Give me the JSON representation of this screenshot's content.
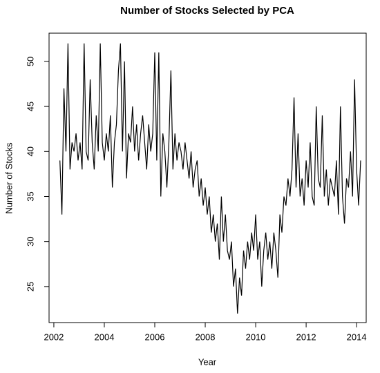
{
  "chart_data": {
    "type": "line",
    "title": "Number of Stocks Selected by PCA",
    "x_label": "Year",
    "y_label": "Number of Stocks",
    "color": "#000000",
    "xlim": [
      2001.81,
      2014.38
    ],
    "ylim": [
      21.0,
      53.14
    ],
    "xticks": [
      2002,
      2004,
      2006,
      2008,
      2010,
      2012,
      2014
    ],
    "yticks": [
      25,
      30,
      35,
      40,
      45,
      50
    ],
    "x": [
      2002.24,
      2002.32,
      2002.4,
      2002.48,
      2002.56,
      2002.64,
      2002.72,
      2002.8,
      2002.88,
      2002.96,
      2003.04,
      2003.12,
      2003.2,
      2003.28,
      2003.36,
      2003.44,
      2003.52,
      2003.6,
      2003.68,
      2003.76,
      2003.84,
      2003.92,
      2004.0,
      2004.08,
      2004.16,
      2004.24,
      2004.32,
      2004.4,
      2004.48,
      2004.56,
      2004.64,
      2004.72,
      2004.8,
      2004.88,
      2004.96,
      2005.04,
      2005.12,
      2005.2,
      2005.28,
      2005.36,
      2005.44,
      2005.52,
      2005.6,
      2005.68,
      2005.76,
      2005.84,
      2005.92,
      2006.0,
      2006.08,
      2006.16,
      2006.24,
      2006.32,
      2006.4,
      2006.48,
      2006.56,
      2006.64,
      2006.72,
      2006.8,
      2006.88,
      2006.96,
      2007.04,
      2007.12,
      2007.2,
      2007.28,
      2007.36,
      2007.44,
      2007.52,
      2007.6,
      2007.68,
      2007.76,
      2007.84,
      2007.92,
      2008.0,
      2008.08,
      2008.16,
      2008.24,
      2008.32,
      2008.4,
      2008.48,
      2008.56,
      2008.64,
      2008.72,
      2008.8,
      2008.88,
      2008.96,
      2009.04,
      2009.12,
      2009.2,
      2009.28,
      2009.36,
      2009.44,
      2009.52,
      2009.6,
      2009.68,
      2009.76,
      2009.84,
      2009.92,
      2010.0,
      2010.08,
      2010.16,
      2010.24,
      2010.32,
      2010.4,
      2010.48,
      2010.56,
      2010.64,
      2010.72,
      2010.8,
      2010.88,
      2010.96,
      2011.04,
      2011.12,
      2011.2,
      2011.28,
      2011.36,
      2011.44,
      2011.52,
      2011.6,
      2011.68,
      2011.76,
      2011.84,
      2011.92,
      2012.0,
      2012.08,
      2012.16,
      2012.24,
      2012.32,
      2012.4,
      2012.48,
      2012.56,
      2012.64,
      2012.72,
      2012.8,
      2012.88,
      2012.96,
      2013.04,
      2013.12,
      2013.2,
      2013.28,
      2013.36,
      2013.44,
      2013.52,
      2013.6,
      2013.68,
      2013.76,
      2013.84,
      2013.92,
      2014.0,
      2014.08,
      2014.16
    ],
    "values": [
      39,
      33,
      47,
      40,
      52,
      38,
      41,
      40,
      42,
      39,
      41,
      38,
      52,
      40,
      39,
      48,
      41,
      38,
      44,
      40,
      52,
      41,
      39,
      42,
      40,
      44,
      36,
      41,
      43,
      49,
      52,
      40,
      50,
      37,
      42,
      41,
      45,
      40,
      43,
      39,
      42,
      44,
      41,
      38,
      43,
      40,
      42,
      51,
      39,
      51,
      35,
      42,
      40,
      36,
      41,
      49,
      38,
      42,
      39,
      41,
      40,
      38,
      41,
      39,
      37,
      40,
      36,
      38,
      39,
      35,
      37,
      34,
      36,
      33,
      35,
      31,
      33,
      30,
      32,
      28,
      35,
      30,
      33,
      29,
      28,
      30,
      25,
      27,
      22,
      26,
      24,
      29,
      27,
      30,
      28,
      31,
      29,
      33,
      28,
      30,
      25,
      29,
      31,
      28,
      30,
      27,
      31,
      29,
      26,
      33,
      31,
      35,
      34,
      37,
      35,
      38,
      46,
      36,
      42,
      35,
      37,
      34,
      39,
      36,
      41,
      35,
      34,
      45,
      37,
      36,
      44,
      35,
      38,
      34,
      37,
      36,
      35,
      39,
      33,
      45,
      35,
      32,
      37,
      36,
      40,
      35,
      48,
      38,
      34,
      39
    ]
  }
}
